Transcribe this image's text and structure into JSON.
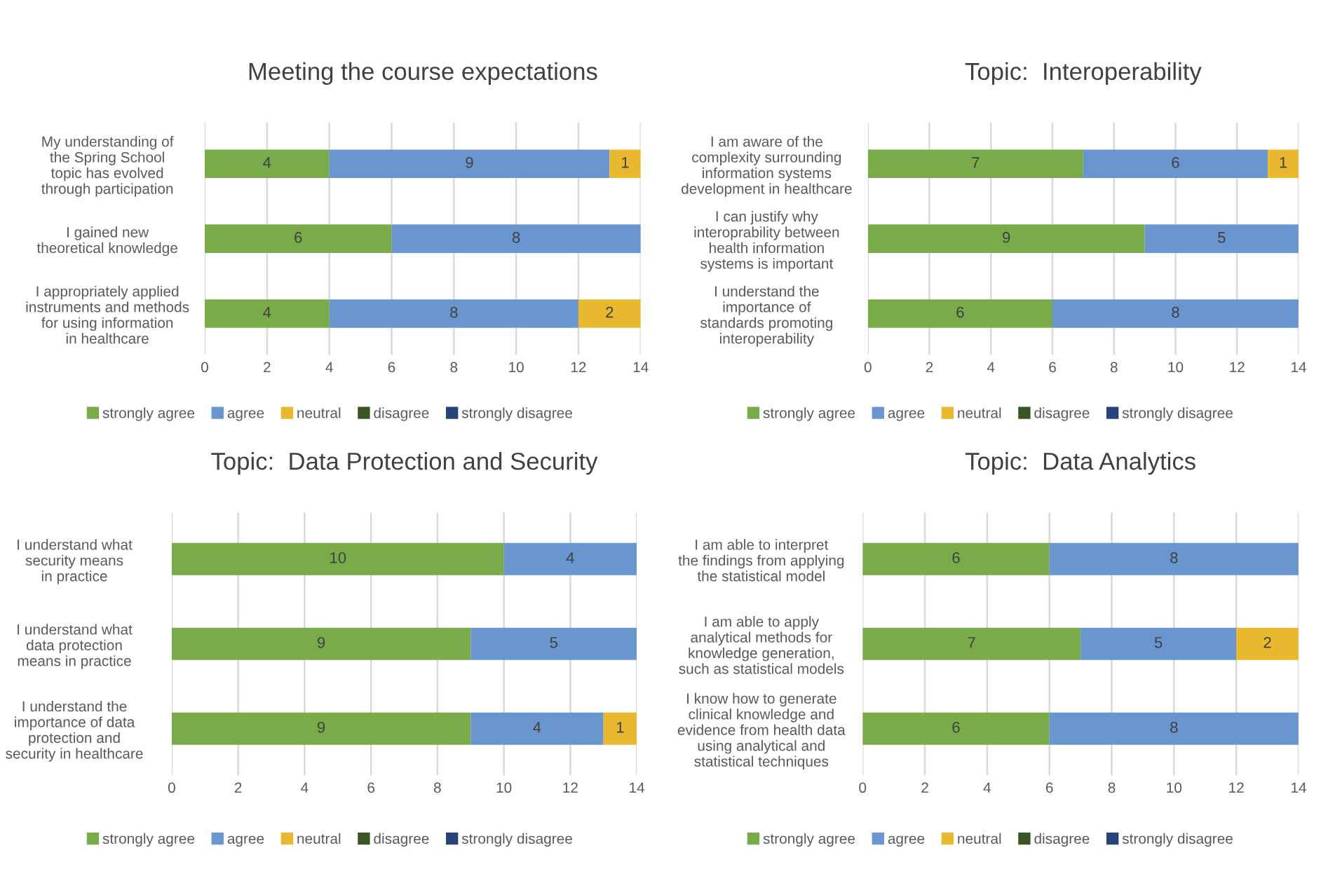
{
  "chart_data": [
    {
      "type": "bar",
      "orientation": "horizontal",
      "stacked": true,
      "title": "Meeting the course expectations",
      "categories": [
        "My understanding of\nthe Spring School\ntopic has evolved\nthrough participation",
        "I gained new\ntheoretical knowledge",
        "I appropriately applied\ninstruments and methods\nfor using information\nin healthcare"
      ],
      "series": [
        {
          "name": "strongly agree",
          "color": "#7aab4b",
          "values": [
            4,
            6,
            4
          ]
        },
        {
          "name": "agree",
          "color": "#6a96cf",
          "values": [
            9,
            8,
            8
          ]
        },
        {
          "name": "neutral",
          "color": "#e8b92e",
          "values": [
            1,
            null,
            2
          ]
        },
        {
          "name": "disagree",
          "color": "#375623",
          "values": [
            null,
            null,
            null
          ]
        },
        {
          "name": "strongly disagree",
          "color": "#264478",
          "values": [
            null,
            null,
            null
          ]
        }
      ],
      "xlim": [
        0,
        14
      ],
      "xticks": [
        0,
        2,
        4,
        6,
        8,
        10,
        12,
        14
      ],
      "grid": "x",
      "legend": "bottom",
      "data_labels": true
    },
    {
      "type": "bar",
      "orientation": "horizontal",
      "stacked": true,
      "title": "Topic:  Interoperability",
      "categories": [
        "I am aware of the\ncomplexity surrounding\ninformation systems\ndevelopment in healthcare",
        "I can justify why\ninteroprability between\nhealth information\nsystems is important",
        "I understand the\nimportance of\nstandards promoting\ninteroperability"
      ],
      "series": [
        {
          "name": "strongly agree",
          "color": "#7aab4b",
          "values": [
            7,
            9,
            6
          ]
        },
        {
          "name": "agree",
          "color": "#6a96cf",
          "values": [
            6,
            5,
            8
          ]
        },
        {
          "name": "neutral",
          "color": "#e8b92e",
          "values": [
            1,
            null,
            null
          ]
        },
        {
          "name": "disagree",
          "color": "#375623",
          "values": [
            null,
            null,
            null
          ]
        },
        {
          "name": "strongly disagree",
          "color": "#264478",
          "values": [
            null,
            null,
            null
          ]
        }
      ],
      "xlim": [
        0,
        14
      ],
      "xticks": [
        0,
        2,
        4,
        6,
        8,
        10,
        12,
        14
      ],
      "grid": "x",
      "legend": "bottom",
      "data_labels": true
    },
    {
      "type": "bar",
      "orientation": "horizontal",
      "stacked": true,
      "title": "Topic:  Data Protection and Security",
      "categories": [
        "I understand what\nsecurity means\nin practice",
        "I understand what\ndata protection\nmeans in practice",
        "I understand the\nimportance of data\nprotection and\nsecurity in healthcare"
      ],
      "series": [
        {
          "name": "strongly agree",
          "color": "#7aab4b",
          "values": [
            10,
            9,
            9
          ]
        },
        {
          "name": "agree",
          "color": "#6a96cf",
          "values": [
            4,
            5,
            4
          ]
        },
        {
          "name": "neutral",
          "color": "#e8b92e",
          "values": [
            null,
            null,
            1
          ]
        },
        {
          "name": "disagree",
          "color": "#375623",
          "values": [
            null,
            null,
            null
          ]
        },
        {
          "name": "strongly disagree",
          "color": "#264478",
          "values": [
            null,
            null,
            null
          ]
        }
      ],
      "xlim": [
        0,
        14
      ],
      "xticks": [
        0,
        2,
        4,
        6,
        8,
        10,
        12,
        14
      ],
      "grid": "x",
      "legend": "bottom",
      "data_labels": true
    },
    {
      "type": "bar",
      "orientation": "horizontal",
      "stacked": true,
      "title": "Topic:  Data Analytics",
      "categories": [
        "I am able to interpret\nthe findings from applying\nthe statistical model",
        "I am able to apply\nanalytical methods for\nknowledge generation,\nsuch as statistical models",
        "I know how to generate\nclinical knowledge and\nevidence from health data\nusing analytical and\nstatistical techniques"
      ],
      "series": [
        {
          "name": "strongly agree",
          "color": "#7aab4b",
          "values": [
            6,
            7,
            6
          ]
        },
        {
          "name": "agree",
          "color": "#6a96cf",
          "values": [
            8,
            5,
            8
          ]
        },
        {
          "name": "neutral",
          "color": "#e8b92e",
          "values": [
            null,
            2,
            null
          ]
        },
        {
          "name": "disagree",
          "color": "#375623",
          "values": [
            null,
            null,
            null
          ]
        },
        {
          "name": "strongly disagree",
          "color": "#264478",
          "values": [
            null,
            null,
            null
          ]
        }
      ],
      "xlim": [
        0,
        14
      ],
      "xticks": [
        0,
        2,
        4,
        6,
        8,
        10,
        12,
        14
      ],
      "grid": "x",
      "legend": "bottom",
      "data_labels": true
    }
  ]
}
